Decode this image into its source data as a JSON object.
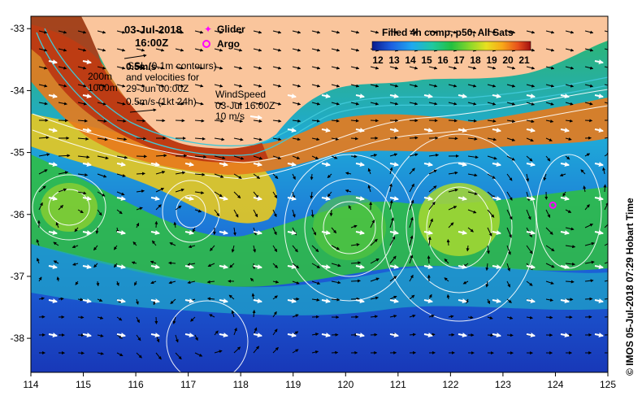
{
  "map": {
    "date_label": "03-Jul-2018",
    "time_label": "16:00Z",
    "legend_glider": "Glider",
    "legend_argo": "Argo",
    "ssl_line1": "SSL (0.1m contours)",
    "ssl_line2": "and velocities for",
    "ssl_line3": "29-Jun 00:00Z",
    "ssl_scale_top": "0.5m/s",
    "ssl_scale_bottom": "0.5m/s (1kt 24h)",
    "isobath_1": "200m",
    "isobath_2": "1000m",
    "wind_line1": "WindSpeed",
    "wind_line2": "03-Jul 16:00Z",
    "wind_line3": "10 m/s",
    "colorbar_title": "Filled 4h comp, p50, All Sats",
    "colorbar_ticks": [
      "12",
      "13",
      "14",
      "15",
      "16",
      "17",
      "18",
      "19",
      "20",
      "21"
    ],
    "credit": "© IMOS 05-Jul-2018 07:29 Hobart Time",
    "lon_ticks": [
      "114",
      "115",
      "116",
      "117",
      "118",
      "119",
      "120",
      "121",
      "122",
      "123",
      "124",
      "125"
    ],
    "lat_ticks": [
      "-33",
      "-34",
      "-35",
      "-36",
      "-37",
      "-38"
    ],
    "colors": {
      "land": "#fac59c",
      "argo": "#ff00ff",
      "glider": "#ff00ff",
      "contour": "#ffffff",
      "isobath": "#40c8d8"
    },
    "argo_position": {
      "lon": 123.95,
      "lat": -35.85
    }
  }
}
